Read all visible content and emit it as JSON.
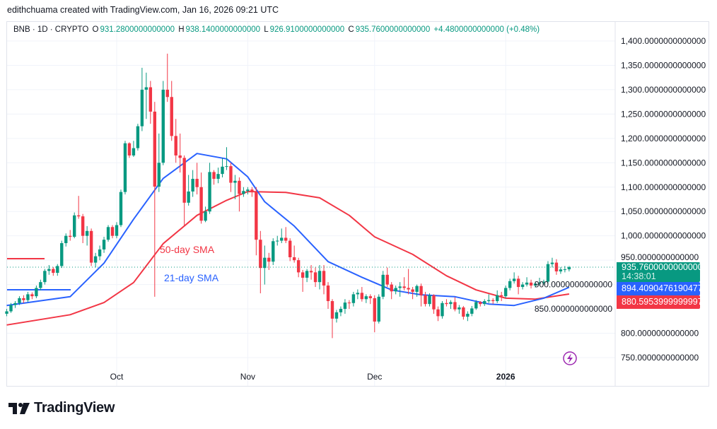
{
  "credit": "edithchuama created with TradingView.com, Jan 16, 2026 09:21 UTC",
  "legend": {
    "symbol": "BNB · 1D · CRYPTO",
    "open_label": "O",
    "open": "931.2800000000000",
    "high_label": "H",
    "high": "938.1400000000000",
    "low_label": "L",
    "low": "926.9100000000000",
    "close_label": "C",
    "close": "935.7600000000000",
    "change": "+4.4800000000000 (+0.48%)"
  },
  "price_tags": {
    "last_price": "935.7600000000000",
    "countdown": "14:38:01",
    "sma21_value": "894.4090476190477",
    "sma50_value": "880.5953999999997"
  },
  "annotations": {
    "sma50": "50-day SMA",
    "sma21": "21-day SMA"
  },
  "logo_text": "TradingView",
  "icons": {
    "logo": "tradingview-logo",
    "flash": "lightning-icon"
  },
  "chart_data": {
    "type": "candlestick",
    "title": "",
    "colors": {
      "up": "#089981",
      "down": "#F23645",
      "sma21": "#2962FF",
      "sma50": "#F23645"
    },
    "ylim": [
      730,
      1420
    ],
    "yticks": [
      "1,400.0000000000000",
      "1,350.0000000000000",
      "1,300.0000000000000",
      "1,250.0000000000000",
      "1,200.0000000000000",
      "1,150.0000000000000",
      "1,100.0000000000000",
      "1,050.0000000000000",
      "1,000.0000000000000",
      "950.0000000000000",
      "900.0000000000000",
      "850.0000000000000",
      "800.0000000000000",
      "750.0000000000000"
    ],
    "ytick_values": [
      1400,
      1350,
      1300,
      1250,
      1200,
      1150,
      1100,
      1050,
      1000,
      950,
      900,
      850,
      800,
      750
    ],
    "xticks": [
      {
        "label": "Oct",
        "date": "2025-10-01"
      },
      {
        "label": "Nov",
        "date": "2025-11-01"
      },
      {
        "label": "Dec",
        "date": "2025-12-01"
      },
      {
        "label": "2026",
        "date": "2026-01-01",
        "bold": true
      }
    ],
    "grid": true,
    "candles": [
      [
        "2025-09-05",
        840,
        850,
        835,
        845
      ],
      [
        "2025-09-06",
        845,
        862,
        842,
        858
      ],
      [
        "2025-09-07",
        858,
        866,
        852,
        862
      ],
      [
        "2025-09-08",
        862,
        876,
        858,
        872
      ],
      [
        "2025-09-09",
        872,
        878,
        862,
        868
      ],
      [
        "2025-09-10",
        868,
        885,
        864,
        880
      ],
      [
        "2025-09-11",
        880,
        884,
        870,
        876
      ],
      [
        "2025-09-12",
        876,
        898,
        872,
        893
      ],
      [
        "2025-09-13",
        893,
        910,
        888,
        905
      ],
      [
        "2025-09-14",
        905,
        932,
        900,
        928
      ],
      [
        "2025-09-15",
        928,
        940,
        920,
        932
      ],
      [
        "2025-09-16",
        932,
        936,
        918,
        924
      ],
      [
        "2025-09-17",
        924,
        942,
        918,
        938
      ],
      [
        "2025-09-18",
        938,
        990,
        934,
        985
      ],
      [
        "2025-09-19",
        985,
        1005,
        978,
        1000
      ],
      [
        "2025-09-20",
        1000,
        1012,
        990,
        998
      ],
      [
        "2025-09-21",
        998,
        1048,
        995,
        1042
      ],
      [
        "2025-09-22",
        1042,
        1082,
        1035,
        1040
      ],
      [
        "2025-09-23",
        1040,
        1045,
        985,
        1000
      ],
      [
        "2025-09-24",
        1000,
        1020,
        980,
        1010
      ],
      [
        "2025-09-25",
        1010,
        1015,
        938,
        945
      ],
      [
        "2025-09-26",
        945,
        965,
        935,
        958
      ],
      [
        "2025-09-27",
        958,
        980,
        950,
        972
      ],
      [
        "2025-09-28",
        972,
        998,
        965,
        992
      ],
      [
        "2025-09-29",
        992,
        1022,
        988,
        1018
      ],
      [
        "2025-09-30",
        1018,
        1022,
        995,
        1000
      ],
      [
        "2025-10-01",
        1000,
        1028,
        995,
        1022
      ],
      [
        "2025-10-02",
        1022,
        1095,
        1018,
        1090
      ],
      [
        "2025-10-03",
        1090,
        1195,
        1085,
        1190
      ],
      [
        "2025-10-04",
        1190,
        1192,
        1160,
        1165
      ],
      [
        "2025-10-05",
        1165,
        1195,
        1162,
        1180
      ],
      [
        "2025-10-06",
        1180,
        1230,
        1175,
        1225
      ],
      [
        "2025-10-07",
        1225,
        1345,
        1215,
        1300
      ],
      [
        "2025-10-08",
        1300,
        1335,
        1240,
        1305
      ],
      [
        "2025-10-09",
        1305,
        1318,
        1230,
        1255
      ],
      [
        "2025-10-10",
        1255,
        1275,
        875,
        1101
      ],
      [
        "2025-10-11",
        1101,
        1210,
        1090,
        1150
      ],
      [
        "2025-10-12",
        1150,
        1318,
        1145,
        1300
      ],
      [
        "2025-10-13",
        1300,
        1374,
        1275,
        1285
      ],
      [
        "2025-10-14",
        1285,
        1318,
        1195,
        1205
      ],
      [
        "2025-10-15",
        1205,
        1240,
        1150,
        1165
      ],
      [
        "2025-10-16",
        1165,
        1210,
        1130,
        1160
      ],
      [
        "2025-10-17",
        1160,
        1165,
        1020,
        1068
      ],
      [
        "2025-10-18",
        1068,
        1125,
        1062,
        1091
      ],
      [
        "2025-10-19",
        1091,
        1135,
        1080,
        1117
      ],
      [
        "2025-10-20",
        1117,
        1150,
        1085,
        1100
      ],
      [
        "2025-10-21",
        1100,
        1130,
        1025,
        1031
      ],
      [
        "2025-10-22",
        1031,
        1060,
        1028,
        1050
      ],
      [
        "2025-10-23",
        1050,
        1150,
        1045,
        1131
      ],
      [
        "2025-10-24",
        1131,
        1135,
        1105,
        1117
      ],
      [
        "2025-10-25",
        1117,
        1140,
        1108,
        1127
      ],
      [
        "2025-10-26",
        1127,
        1160,
        1120,
        1142
      ],
      [
        "2025-10-27",
        1142,
        1182,
        1135,
        1143
      ],
      [
        "2025-10-28",
        1143,
        1150,
        1090,
        1109
      ],
      [
        "2025-10-29",
        1109,
        1125,
        1075,
        1113
      ],
      [
        "2025-10-30",
        1113,
        1120,
        1050,
        1086
      ],
      [
        "2025-10-31",
        1086,
        1100,
        1080,
        1092
      ],
      [
        "2025-11-01",
        1092,
        1100,
        1085,
        1095
      ],
      [
        "2025-11-02",
        1095,
        1100,
        1080,
        1090
      ],
      [
        "2025-11-03",
        1090,
        1100,
        960,
        992
      ],
      [
        "2025-11-04",
        992,
        1010,
        882,
        934
      ],
      [
        "2025-11-05",
        934,
        980,
        900,
        955
      ],
      [
        "2025-11-06",
        955,
        965,
        930,
        947
      ],
      [
        "2025-11-07",
        947,
        995,
        940,
        989
      ],
      [
        "2025-11-08",
        989,
        1000,
        980,
        990
      ],
      [
        "2025-11-09",
        990,
        1015,
        985,
        996
      ],
      [
        "2025-11-10",
        996,
        1018,
        985,
        990
      ],
      [
        "2025-11-11",
        990,
        995,
        948,
        956
      ],
      [
        "2025-11-12",
        956,
        980,
        945,
        950
      ],
      [
        "2025-11-13",
        950,
        955,
        915,
        925
      ],
      [
        "2025-11-14",
        925,
        930,
        885,
        914
      ],
      [
        "2025-11-15",
        914,
        932,
        905,
        928
      ],
      [
        "2025-11-16",
        928,
        940,
        910,
        925
      ],
      [
        "2025-11-17",
        925,
        935,
        895,
        905
      ],
      [
        "2025-11-18",
        905,
        940,
        890,
        928
      ],
      [
        "2025-11-19",
        928,
        940,
        880,
        898
      ],
      [
        "2025-11-20",
        898,
        905,
        850,
        866
      ],
      [
        "2025-11-21",
        866,
        870,
        790,
        830
      ],
      [
        "2025-11-22",
        830,
        848,
        822,
        843
      ],
      [
        "2025-11-23",
        843,
        855,
        835,
        850
      ],
      [
        "2025-11-24",
        850,
        870,
        840,
        863
      ],
      [
        "2025-11-25",
        863,
        868,
        850,
        862
      ],
      [
        "2025-11-26",
        862,
        885,
        855,
        880
      ],
      [
        "2025-11-27",
        880,
        890,
        870,
        883
      ],
      [
        "2025-11-28",
        883,
        895,
        865,
        870
      ],
      [
        "2025-11-29",
        870,
        880,
        862,
        876
      ],
      [
        "2025-11-30",
        876,
        880,
        860,
        872
      ],
      [
        "2025-12-01",
        872,
        878,
        802,
        824
      ],
      [
        "2025-12-02",
        824,
        880,
        820,
        875
      ],
      [
        "2025-12-03",
        875,
        928,
        870,
        920
      ],
      [
        "2025-12-04",
        920,
        935,
        895,
        900
      ],
      [
        "2025-12-05",
        900,
        905,
        870,
        886
      ],
      [
        "2025-12-06",
        886,
        898,
        880,
        893
      ],
      [
        "2025-12-07",
        893,
        905,
        875,
        896
      ],
      [
        "2025-12-08",
        896,
        915,
        888,
        893
      ],
      [
        "2025-12-09",
        893,
        932,
        880,
        890
      ],
      [
        "2025-12-10",
        890,
        895,
        870,
        885
      ],
      [
        "2025-12-11",
        885,
        900,
        875,
        897
      ],
      [
        "2025-12-12",
        897,
        902,
        855,
        878
      ],
      [
        "2025-12-13",
        878,
        885,
        855,
        860
      ],
      [
        "2025-12-14",
        860,
        882,
        855,
        878
      ],
      [
        "2025-12-15",
        878,
        880,
        840,
        849
      ],
      [
        "2025-12-16",
        849,
        855,
        825,
        835
      ],
      [
        "2025-12-17",
        835,
        866,
        830,
        862
      ],
      [
        "2025-12-18",
        862,
        870,
        855,
        860
      ],
      [
        "2025-12-19",
        860,
        868,
        850,
        864
      ],
      [
        "2025-12-20",
        864,
        874,
        845,
        849
      ],
      [
        "2025-12-21",
        849,
        858,
        840,
        853
      ],
      [
        "2025-12-22",
        853,
        856,
        828,
        834
      ],
      [
        "2025-12-23",
        834,
        845,
        825,
        840
      ],
      [
        "2025-12-24",
        840,
        856,
        835,
        851
      ],
      [
        "2025-12-25",
        851,
        868,
        848,
        864
      ],
      [
        "2025-12-26",
        864,
        866,
        855,
        860
      ],
      [
        "2025-12-27",
        860,
        870,
        856,
        866
      ],
      [
        "2025-12-28",
        866,
        880,
        862,
        868
      ],
      [
        "2025-12-29",
        868,
        872,
        860,
        866
      ],
      [
        "2025-12-30",
        866,
        888,
        862,
        878
      ],
      [
        "2025-12-31",
        878,
        885,
        866,
        876
      ],
      [
        "2026-01-01",
        876,
        898,
        872,
        893
      ],
      [
        "2026-01-02",
        893,
        912,
        888,
        907
      ],
      [
        "2026-01-03",
        907,
        925,
        902,
        912
      ],
      [
        "2026-01-04",
        912,
        918,
        880,
        895
      ],
      [
        "2026-01-05",
        895,
        905,
        890,
        900
      ],
      [
        "2026-01-06",
        900,
        915,
        896,
        904
      ],
      [
        "2026-01-07",
        904,
        910,
        892,
        898
      ],
      [
        "2026-01-08",
        898,
        906,
        894,
        902
      ],
      [
        "2026-01-09",
        902,
        914,
        898,
        904
      ],
      [
        "2026-01-10",
        904,
        910,
        900,
        906
      ],
      [
        "2026-01-11",
        906,
        948,
        902,
        942
      ],
      [
        "2026-01-12",
        942,
        955,
        935,
        945
      ],
      [
        "2026-01-13",
        945,
        952,
        920,
        927
      ],
      [
        "2026-01-14",
        927,
        936,
        922,
        931
      ],
      [
        "2026-01-15",
        931,
        938,
        925,
        931.28
      ],
      [
        "2026-01-16",
        931.28,
        938.14,
        926.91,
        935.76
      ]
    ],
    "sma21": [
      [
        "2025-09-05",
        857
      ],
      [
        "2025-09-20",
        875
      ],
      [
        "2025-09-28",
        944
      ],
      [
        "2025-10-05",
        1034
      ],
      [
        "2025-10-12",
        1118
      ],
      [
        "2025-10-20",
        1169
      ],
      [
        "2025-10-27",
        1158
      ],
      [
        "2025-11-01",
        1121
      ],
      [
        "2025-11-05",
        1070
      ],
      [
        "2025-11-12",
        1020
      ],
      [
        "2025-11-20",
        947
      ],
      [
        "2025-11-28",
        915
      ],
      [
        "2025-12-05",
        889
      ],
      [
        "2025-12-12",
        879
      ],
      [
        "2025-12-20",
        875
      ],
      [
        "2025-12-28",
        860
      ],
      [
        "2026-01-03",
        857
      ],
      [
        "2026-01-10",
        872
      ],
      [
        "2026-01-16",
        894.41
      ]
    ],
    "sma50": [
      [
        "2025-09-05",
        817
      ],
      [
        "2025-09-20",
        838
      ],
      [
        "2025-09-28",
        863
      ],
      [
        "2025-10-05",
        904
      ],
      [
        "2025-10-12",
        984
      ],
      [
        "2025-10-20",
        1042
      ],
      [
        "2025-10-27",
        1073
      ],
      [
        "2025-11-01",
        1091
      ],
      [
        "2025-11-10",
        1089
      ],
      [
        "2025-11-18",
        1078
      ],
      [
        "2025-11-25",
        1042
      ],
      [
        "2025-12-01",
        998
      ],
      [
        "2025-12-10",
        962
      ],
      [
        "2025-12-18",
        918
      ],
      [
        "2025-12-25",
        889
      ],
      [
        "2026-01-01",
        872
      ],
      [
        "2026-01-08",
        870
      ],
      [
        "2026-01-16",
        880.6
      ]
    ]
  }
}
